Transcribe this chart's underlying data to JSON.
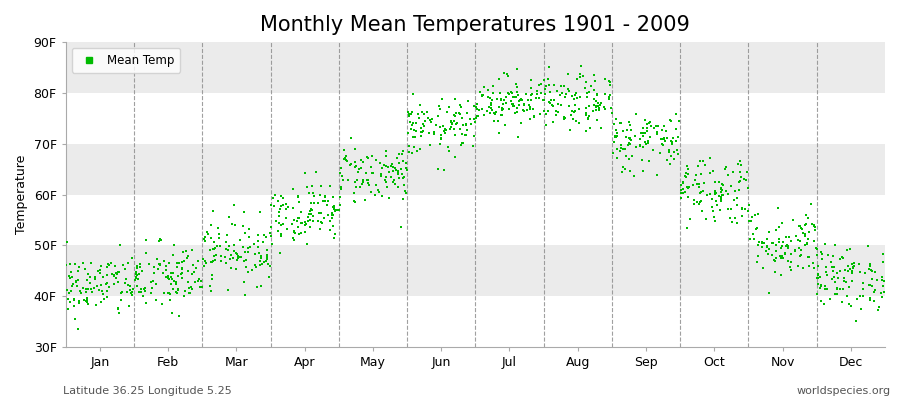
{
  "title": "Monthly Mean Temperatures 1901 - 2009",
  "ylabel": "Temperature",
  "xlabel_labels": [
    "Jan",
    "Feb",
    "Mar",
    "Apr",
    "May",
    "Jun",
    "Jul",
    "Aug",
    "Sep",
    "Oct",
    "Nov",
    "Dec"
  ],
  "ylim": [
    30,
    90
  ],
  "yticks": [
    30,
    40,
    50,
    60,
    70,
    80,
    90
  ],
  "ytick_labels": [
    "30F",
    "40F",
    "50F",
    "60F",
    "70F",
    "80F",
    "90F"
  ],
  "dot_color": "#00BB00",
  "background_color": "#F2F2F2",
  "stripe_color": "#FFFFFF",
  "stripe2_color": "#EBEBEB",
  "title_fontsize": 15,
  "legend_label": "Mean Temp",
  "footnote_left": "Latitude 36.25 Longitude 5.25",
  "footnote_right": "worldspecies.org",
  "monthly_means_F": [
    42.0,
    43.5,
    49.0,
    56.5,
    64.0,
    73.0,
    78.5,
    78.0,
    70.5,
    61.0,
    50.5,
    43.5
  ],
  "monthly_std_F": [
    3.2,
    3.5,
    3.2,
    3.0,
    3.0,
    2.8,
    2.5,
    2.8,
    3.0,
    3.5,
    3.5,
    3.2
  ],
  "n_years": 109,
  "seed": 42
}
